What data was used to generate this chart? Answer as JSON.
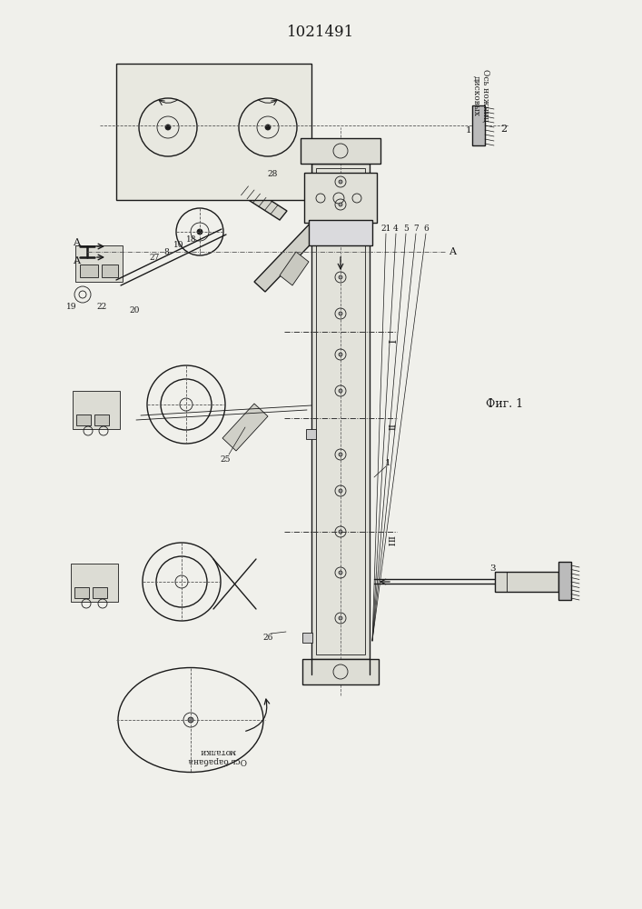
{
  "title": "1021491",
  "bg_color": "#f0f0eb",
  "line_color": "#1a1a1a",
  "fig_label": "Фиг. 1",
  "scissors_axis_label": "Ось ножниц\nдисковых",
  "winder_axis_label": "Ось барабана\nмоталки"
}
